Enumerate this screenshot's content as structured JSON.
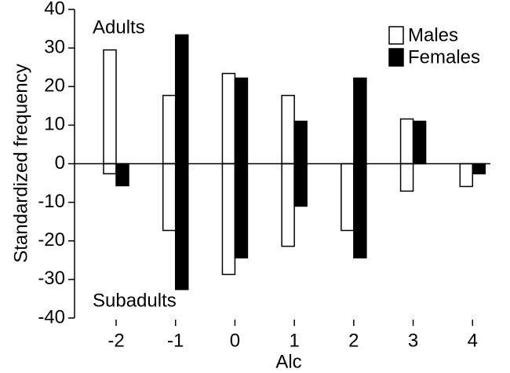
{
  "chart_data": {
    "type": "bar",
    "y_label": "Standardized frequency",
    "x_label": "Alc",
    "annotations": [
      "Adults",
      "Subadults"
    ],
    "x": [
      -2,
      -1,
      0,
      1,
      2,
      3,
      4
    ],
    "xlim": [
      -2.7,
      4.3
    ],
    "xticks": [
      -2,
      -1,
      0,
      1,
      2,
      3,
      4
    ],
    "ylim": [
      -40,
      40
    ],
    "yticks": [
      -40,
      -30,
      -20,
      -10,
      0,
      10,
      20,
      30,
      40
    ],
    "series": [
      {
        "name": "Males",
        "color": "#ffffff",
        "adults": [
          29.5,
          17.7,
          23.4,
          17.7,
          0,
          11.6,
          0
        ],
        "subadults": [
          -2.6,
          -17.3,
          -28.7,
          -21.4,
          -17.3,
          -7.1,
          -5.9
        ]
      },
      {
        "name": "Females",
        "color": "#000000",
        "adults": [
          0,
          33.4,
          22.2,
          11,
          22.2,
          11,
          0
        ],
        "subadults": [
          -5.7,
          -32.6,
          -24.4,
          -11,
          -24.4,
          0,
          -2.6
        ]
      }
    ]
  }
}
